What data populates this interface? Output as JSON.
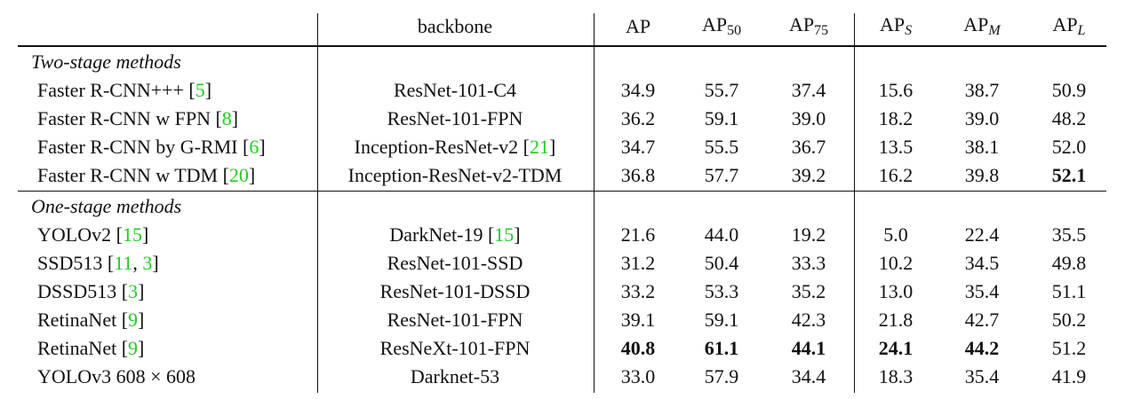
{
  "header": {
    "columns": [
      {
        "base": "backbone"
      },
      {
        "base": "AP"
      },
      {
        "base": "AP",
        "sub": "50"
      },
      {
        "base": "AP",
        "sub": "75"
      },
      {
        "base": "AP",
        "sub": "S",
        "sub_italic": true
      },
      {
        "base": "AP",
        "sub": "M",
        "sub_italic": true
      },
      {
        "base": "AP",
        "sub": "L",
        "sub_italic": true
      }
    ]
  },
  "sections": [
    {
      "title": "Two-stage methods",
      "rows": [
        {
          "method": [
            {
              "text": "Faster R-CNN+++ ["
            },
            {
              "text": "5",
              "cite": true
            },
            {
              "text": "]"
            }
          ],
          "backbone": [
            {
              "text": "ResNet-101-C4"
            }
          ],
          "values": [
            "34.9",
            "55.7",
            "37.4",
            "15.6",
            "38.7",
            "50.9"
          ],
          "bold": []
        },
        {
          "method": [
            {
              "text": "Faster R-CNN w FPN ["
            },
            {
              "text": "8",
              "cite": true
            },
            {
              "text": "]"
            }
          ],
          "backbone": [
            {
              "text": "ResNet-101-FPN"
            }
          ],
          "values": [
            "36.2",
            "59.1",
            "39.0",
            "18.2",
            "39.0",
            "48.2"
          ],
          "bold": []
        },
        {
          "method": [
            {
              "text": "Faster R-CNN by G-RMI ["
            },
            {
              "text": "6",
              "cite": true
            },
            {
              "text": "]"
            }
          ],
          "backbone": [
            {
              "text": "Inception-ResNet-v2 ["
            },
            {
              "text": "21",
              "cite": true
            },
            {
              "text": "]"
            }
          ],
          "values": [
            "34.7",
            "55.5",
            "36.7",
            "13.5",
            "38.1",
            "52.0"
          ],
          "bold": []
        },
        {
          "method": [
            {
              "text": "Faster R-CNN w TDM ["
            },
            {
              "text": "20",
              "cite": true
            },
            {
              "text": "]"
            }
          ],
          "backbone": [
            {
              "text": "Inception-ResNet-v2-TDM"
            }
          ],
          "values": [
            "36.8",
            "57.7",
            "39.2",
            "16.2",
            "39.8",
            "52.1"
          ],
          "bold": [
            5
          ]
        }
      ]
    },
    {
      "title": "One-stage methods",
      "rows": [
        {
          "method": [
            {
              "text": "YOLOv2 ["
            },
            {
              "text": "15",
              "cite": true
            },
            {
              "text": "]"
            }
          ],
          "backbone": [
            {
              "text": "DarkNet-19 ["
            },
            {
              "text": "15",
              "cite": true
            },
            {
              "text": "]"
            }
          ],
          "values": [
            "21.6",
            "44.0",
            "19.2",
            "5.0",
            "22.4",
            "35.5"
          ],
          "bold": []
        },
        {
          "method": [
            {
              "text": "SSD513 ["
            },
            {
              "text": "11",
              "cite": true
            },
            {
              "text": ", "
            },
            {
              "text": "3",
              "cite": true
            },
            {
              "text": "]"
            }
          ],
          "backbone": [
            {
              "text": "ResNet-101-SSD"
            }
          ],
          "values": [
            "31.2",
            "50.4",
            "33.3",
            "10.2",
            "34.5",
            "49.8"
          ],
          "bold": []
        },
        {
          "method": [
            {
              "text": "DSSD513 ["
            },
            {
              "text": "3",
              "cite": true
            },
            {
              "text": "]"
            }
          ],
          "backbone": [
            {
              "text": "ResNet-101-DSSD"
            }
          ],
          "values": [
            "33.2",
            "53.3",
            "35.2",
            "13.0",
            "35.4",
            "51.1"
          ],
          "bold": []
        },
        {
          "method": [
            {
              "text": "RetinaNet ["
            },
            {
              "text": "9",
              "cite": true
            },
            {
              "text": "]"
            }
          ],
          "backbone": [
            {
              "text": "ResNet-101-FPN"
            }
          ],
          "values": [
            "39.1",
            "59.1",
            "42.3",
            "21.8",
            "42.7",
            "50.2"
          ],
          "bold": []
        },
        {
          "method": [
            {
              "text": "RetinaNet ["
            },
            {
              "text": "9",
              "cite": true
            },
            {
              "text": "]"
            }
          ],
          "backbone": [
            {
              "text": "ResNeXt-101-FPN"
            }
          ],
          "values": [
            "40.8",
            "61.1",
            "44.1",
            "24.1",
            "44.2",
            "51.2"
          ],
          "bold": [
            0,
            1,
            2,
            3,
            4
          ]
        },
        {
          "method": [
            {
              "text": "YOLOv3 608 × 608"
            }
          ],
          "backbone": [
            {
              "text": "Darknet-53"
            }
          ],
          "values": [
            "33.0",
            "57.9",
            "34.4",
            "18.3",
            "35.4",
            "41.9"
          ],
          "bold": []
        }
      ]
    }
  ]
}
